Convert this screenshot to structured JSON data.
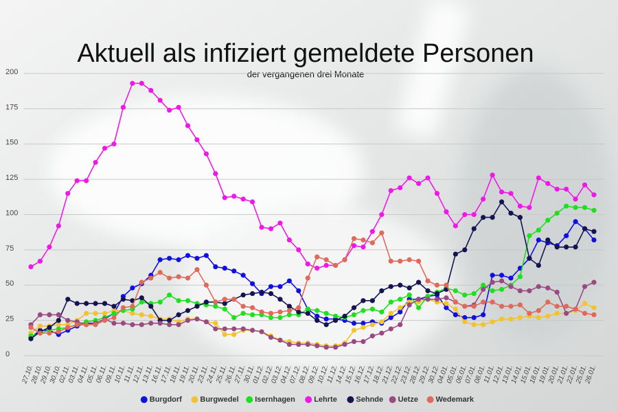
{
  "chart_data": {
    "type": "line",
    "title": "Aktuell als infiziert gemeldete Personen",
    "subtitle": "der vergangenen drei Monate",
    "categories": [
      "27.10.",
      "28.10.",
      "29.10.",
      "30.10.",
      "02.11.",
      "03.11.",
      "04.11.",
      "05.11.",
      "06.11.",
      "09.11.",
      "10.11.",
      "11.11.",
      "12.11.",
      "13.11.",
      "16.11.",
      "17.11.",
      "18.11.",
      "19.11.",
      "20.11.",
      "23.11.",
      "24.11.",
      "25.11.",
      "26.11.",
      "27.11.",
      "30.11.",
      "01.12.",
      "02.12.",
      "03.12.",
      "04.12.",
      "07.12.",
      "08.12.",
      "09.12.",
      "10.12.",
      "11.12.",
      "14.12.",
      "15.12.",
      "16.12.",
      "17.12.",
      "18.12.",
      "21.12.",
      "22.12.",
      "23.12.",
      "28.12.",
      "29.12.",
      "30.12.",
      "04.01.",
      "05.01.",
      "06.01.",
      "07.01.",
      "08.01.",
      "11.01.",
      "12.01.",
      "13.01.",
      "14.01.",
      "15.01.",
      "18.01.",
      "19.01.",
      "20.01.",
      "21.01.",
      "22.01.",
      "25.01.",
      "26.01."
    ],
    "series": [
      {
        "name": "Burgdorf",
        "color": "#1010e0",
        "values": [
          13,
          18,
          18,
          15,
          18,
          21,
          23,
          23,
          26,
          30,
          42,
          48,
          51,
          57,
          68,
          69,
          68,
          71,
          69,
          71,
          63,
          62,
          60,
          57,
          51,
          44,
          49,
          49,
          53,
          46,
          33,
          28,
          26,
          26,
          25,
          23,
          23,
          24,
          23,
          27,
          31,
          40,
          40,
          42,
          43,
          34,
          29,
          27,
          27,
          29,
          57,
          57,
          55,
          62,
          69,
          82,
          80,
          78,
          85,
          95,
          90,
          82
        ]
      },
      {
        "name": "Burgwedel",
        "color": "#f2c230",
        "values": [
          16,
          21,
          21,
          22,
          22,
          25,
          30,
          30,
          30,
          32,
          32,
          30,
          29,
          28,
          26,
          26,
          24,
          26,
          26,
          24,
          23,
          15,
          15,
          18,
          18,
          17,
          14,
          11,
          10,
          9,
          9,
          8,
          7,
          7,
          9,
          18,
          20,
          22,
          24,
          30,
          34,
          38,
          38,
          40,
          38,
          37,
          33,
          24,
          22,
          22,
          24,
          26,
          26,
          27,
          28,
          27,
          28,
          30,
          30,
          32,
          37,
          34
        ]
      },
      {
        "name": "Isernhagen",
        "color": "#1ee01e",
        "values": [
          14,
          16,
          18,
          19,
          20,
          22,
          24,
          25,
          27,
          30,
          32,
          33,
          38,
          37,
          38,
          43,
          39,
          39,
          37,
          36,
          35,
          33,
          27,
          30,
          29,
          29,
          27,
          27,
          29,
          29,
          33,
          32,
          30,
          28,
          27,
          29,
          32,
          33,
          31,
          38,
          40,
          43,
          34,
          42,
          45,
          48,
          46,
          43,
          44,
          50,
          46,
          47,
          50,
          56,
          85,
          89,
          96,
          101,
          106,
          105,
          105,
          103
        ]
      },
      {
        "name": "Lehrte",
        "color": "#f018e8",
        "values": [
          63,
          67,
          77,
          92,
          115,
          124,
          124,
          137,
          147,
          150,
          176,
          193,
          193,
          188,
          181,
          174,
          176,
          163,
          153,
          143,
          129,
          112,
          113,
          111,
          109,
          91,
          90,
          94,
          82,
          75,
          65,
          62,
          64,
          64,
          68,
          78,
          77,
          88,
          100,
          117,
          119,
          126,
          122,
          126,
          115,
          102,
          92,
          100,
          100,
          111,
          128,
          116,
          115,
          106,
          105,
          126,
          122,
          118,
          118,
          111,
          121,
          114
        ]
      },
      {
        "name": "Sehnde",
        "color": "#141450",
        "values": [
          12,
          17,
          20,
          25,
          40,
          37,
          37,
          37,
          37,
          35,
          40,
          39,
          41,
          35,
          25,
          25,
          29,
          32,
          35,
          38,
          38,
          37,
          40,
          43,
          44,
          45,
          44,
          40,
          35,
          31,
          30,
          25,
          22,
          25,
          28,
          34,
          39,
          39,
          46,
          49,
          50,
          48,
          52,
          46,
          44,
          47,
          72,
          75,
          90,
          98,
          98,
          109,
          101,
          98,
          69,
          64,
          82,
          77,
          77,
          77,
          90,
          88
        ]
      },
      {
        "name": "Uetze",
        "color": "#9a4a80",
        "values": [
          22,
          29,
          29,
          29,
          25,
          24,
          22,
          23,
          26,
          23,
          23,
          22,
          22,
          23,
          23,
          22,
          22,
          25,
          26,
          24,
          19,
          19,
          19,
          19,
          18,
          17,
          13,
          11,
          8,
          8,
          8,
          7,
          6,
          6,
          8,
          10,
          10,
          14,
          16,
          19,
          22,
          36,
          40,
          40,
          40,
          41,
          38,
          35,
          36,
          47,
          52,
          53,
          49,
          46,
          46,
          49,
          48,
          45,
          30,
          33,
          49,
          52
        ]
      },
      {
        "name": "Wedemark",
        "color": "#e06a5a",
        "values": [
          20,
          16,
          16,
          17,
          20,
          22,
          22,
          22,
          25,
          27,
          34,
          35,
          52,
          55,
          59,
          55,
          56,
          55,
          61,
          50,
          38,
          40,
          40,
          35,
          34,
          31,
          30,
          31,
          32,
          34,
          55,
          70,
          68,
          64,
          68,
          83,
          82,
          80,
          87,
          67,
          67,
          68,
          67,
          53,
          50,
          50,
          38,
          35,
          35,
          38,
          38,
          35,
          35,
          36,
          30,
          32,
          38,
          35,
          35,
          33,
          30,
          29
        ]
      }
    ],
    "ylim": [
      0,
      200
    ],
    "yticks": [
      0,
      25,
      50,
      75,
      100,
      125,
      150,
      175,
      200
    ],
    "grid": true,
    "legend": "bottom"
  }
}
